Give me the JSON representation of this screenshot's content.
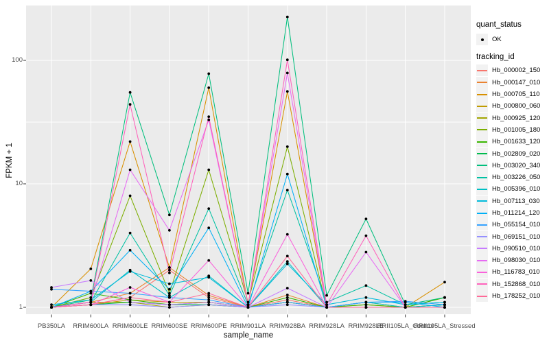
{
  "chart_data": {
    "type": "line",
    "title": "",
    "xlabel": "sample_name",
    "ylabel": "FPKM + 1",
    "y_scale": "log10",
    "ylim": [
      0.88,
      270
    ],
    "grid": true,
    "legend_position": "right",
    "y_ticks": [
      {
        "label": "1",
        "value": 1
      },
      {
        "label": "10",
        "value": 10
      },
      {
        "label": "100",
        "value": 100
      }
    ],
    "y_minor": [
      3.1623,
      31.6228
    ],
    "categories": [
      "PB350LA",
      "RRIM600LA",
      "RRIM600LE",
      "RRIM600SE",
      "RRIM600PE",
      "RRIM901LA",
      "RRIM928BA",
      "RRIM928LA",
      "RRIM928LE",
      "RRII105LA_Control",
      "RRII105LA_Stressed"
    ],
    "legend": {
      "quant_status": {
        "title": "quant_status",
        "items": [
          {
            "label": "OK",
            "marker": "point",
            "color": "#000000"
          }
        ]
      },
      "tracking_id": {
        "title": "tracking_id"
      }
    },
    "series": [
      {
        "name": "Hb_000002_150",
        "color": "#F8766D",
        "values": [
          1.0,
          1.05,
          1.2,
          2.0,
          1.2,
          1.0,
          1.15,
          1.0,
          1.0,
          1.0,
          1.0
        ]
      },
      {
        "name": "Hb_000147_010",
        "color": "#EA8331",
        "values": [
          1.0,
          1.1,
          1.3,
          2.1,
          1.25,
          1.0,
          1.26,
          1.0,
          1.0,
          1.0,
          1.05
        ]
      },
      {
        "name": "Hb_000705_110",
        "color": "#D89000",
        "values": [
          1.0,
          2.05,
          22,
          2.1,
          60,
          1.05,
          56,
          1.0,
          1.05,
          1.0,
          1.6
        ]
      },
      {
        "name": "Hb_000800_060",
        "color": "#C09B00",
        "values": [
          1.0,
          1.05,
          1.15,
          1.1,
          1.1,
          1.0,
          1.1,
          1.0,
          1.0,
          1.0,
          1.05
        ]
      },
      {
        "name": "Hb_000925_120",
        "color": "#A3A500",
        "values": [
          1.0,
          1.1,
          1.1,
          1.0,
          1.05,
          1.0,
          1.1,
          1.0,
          1.0,
          1.0,
          1.0
        ]
      },
      {
        "name": "Hb_001005_180",
        "color": "#7CAE00",
        "values": [
          1.0,
          1.2,
          8.0,
          1.3,
          13,
          1.1,
          20,
          1.0,
          1.1,
          1.0,
          1.2
        ]
      },
      {
        "name": "Hb_001633_120",
        "color": "#39B600",
        "values": [
          1.0,
          1.3,
          1.15,
          1.05,
          1.1,
          1.0,
          1.2,
          1.0,
          1.05,
          1.0,
          1.2
        ]
      },
      {
        "name": "Hb_002809_020",
        "color": "#00BB4E",
        "values": [
          1.0,
          1.05,
          1.1,
          1.05,
          1.05,
          1.0,
          1.1,
          1.0,
          1.0,
          1.0,
          1.05
        ]
      },
      {
        "name": "Hb_003020_340",
        "color": "#00BF7D",
        "values": [
          1.0,
          1.15,
          55,
          5.6,
          78,
          1.3,
          225,
          1.25,
          5.2,
          1.05,
          1.2
        ]
      },
      {
        "name": "Hb_003226_050",
        "color": "#00C1A3",
        "values": [
          1.0,
          1.1,
          4.0,
          1.25,
          6.3,
          1.05,
          8.9,
          1.1,
          1.5,
          1.05,
          1.1
        ]
      },
      {
        "name": "Hb_005396_010",
        "color": "#00BFC4",
        "values": [
          1.0,
          1.1,
          2.0,
          1.2,
          1.8,
          1.0,
          2.35,
          1.0,
          1.1,
          1.0,
          1.05
        ]
      },
      {
        "name": "Hb_007113_030",
        "color": "#00BBDB",
        "values": [
          1.05,
          1.15,
          1.95,
          1.55,
          1.75,
          1.0,
          2.25,
          1.05,
          1.2,
          1.05,
          1.1
        ]
      },
      {
        "name": "Hb_011214_120",
        "color": "#00B0F6",
        "values": [
          1.0,
          1.35,
          2.9,
          1.4,
          4.4,
          1.0,
          12,
          1.0,
          1.1,
          1.1,
          1.0
        ]
      },
      {
        "name": "Hb_055154_010",
        "color": "#35A2FF",
        "values": [
          1.4,
          1.35,
          1.3,
          1.2,
          1.15,
          1.0,
          1.1,
          1.0,
          1.1,
          1.12,
          1.05
        ]
      },
      {
        "name": "Hb_069151_010",
        "color": "#9590FF",
        "values": [
          1.0,
          1.05,
          1.05,
          1.0,
          1.05,
          1.0,
          1.05,
          1.0,
          1.0,
          1.0,
          1.0
        ]
      },
      {
        "name": "Hb_090510_010",
        "color": "#C77CFF",
        "values": [
          1.45,
          1.65,
          1.1,
          1.05,
          1.1,
          1.0,
          1.43,
          1.0,
          1.0,
          1.0,
          1.0
        ]
      },
      {
        "name": "Hb_098030_010",
        "color": "#E76BF3",
        "values": [
          1.0,
          1.1,
          13,
          4.2,
          33,
          1.05,
          79,
          1.0,
          2.8,
          1.0,
          1.0
        ]
      },
      {
        "name": "Hb_116783_010",
        "color": "#FA62DB",
        "values": [
          1.0,
          1.05,
          1.45,
          1.1,
          2.4,
          1.0,
          3.9,
          1.0,
          1.0,
          1.0,
          1.0
        ]
      },
      {
        "name": "Hb_152868_010",
        "color": "#FF62BC",
        "values": [
          1.0,
          1.1,
          44,
          1.9,
          35,
          1.05,
          101,
          1.05,
          3.8,
          1.0,
          1.0
        ]
      },
      {
        "name": "Hb_178252_010",
        "color": "#FF6A98",
        "values": [
          1.0,
          1.05,
          1.2,
          1.1,
          1.3,
          1.0,
          2.6,
          1.0,
          1.0,
          1.0,
          1.0
        ]
      }
    ]
  },
  "style": {
    "panel_bg": "#EBEBEB",
    "grid_color": "#FFFFFF",
    "tick_color": "#333333",
    "tick_text_color": "#4D4D4D",
    "title_color": "#000000",
    "legend_key_bg": "#F2F2F2",
    "point_color": "#000000"
  }
}
